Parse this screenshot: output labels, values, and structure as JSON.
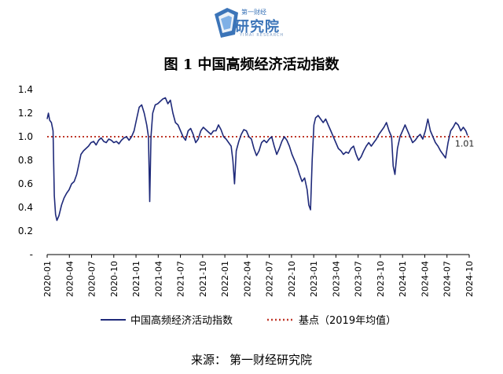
{
  "logo": {
    "top_text": "第一财经",
    "main_text": "研究院",
    "sub_text": "YIMAI RESEARCH"
  },
  "title": "图 1  中国高频经济活动指数",
  "source": {
    "label": "来源：",
    "value": "第一财经研究院"
  },
  "colors": {
    "series": "#1f2a7a",
    "baseline": "#c0392b",
    "axis": "#000000"
  },
  "chart_data": {
    "type": "line",
    "ylim": [
      0,
      1.4
    ],
    "yticks": [
      "-",
      "0.2",
      "0.4",
      "0.6",
      "0.8",
      "1.0",
      "1.2",
      "1.4"
    ],
    "xticks": [
      "2020-01",
      "2020-04",
      "2020-07",
      "2020-10",
      "2021-01",
      "2021-04",
      "2021-07",
      "2021-10",
      "2022-01",
      "2022-04",
      "2022-07",
      "2022-10",
      "2023-01",
      "2023-04",
      "2023-07",
      "2023-10",
      "2024-01",
      "2024-04",
      "2024-07",
      "2024-10"
    ],
    "baseline": {
      "name": "基点（2019年均值）",
      "value": 1.0
    },
    "end_label": "1.01",
    "series": [
      {
        "name": "中国高频经济活动指数",
        "points": [
          [
            0.0,
            1.15
          ],
          [
            0.15,
            1.2
          ],
          [
            0.3,
            1.14
          ],
          [
            0.5,
            1.12
          ],
          [
            0.7,
            1.05
          ],
          [
            0.85,
            0.5
          ],
          [
            1.0,
            0.34
          ],
          [
            1.15,
            0.29
          ],
          [
            1.4,
            0.33
          ],
          [
            1.7,
            0.42
          ],
          [
            2.0,
            0.48
          ],
          [
            2.3,
            0.52
          ],
          [
            2.6,
            0.55
          ],
          [
            2.9,
            0.6
          ],
          [
            3.2,
            0.62
          ],
          [
            3.5,
            0.68
          ],
          [
            3.8,
            0.78
          ],
          [
            4.0,
            0.85
          ],
          [
            4.3,
            0.88
          ],
          [
            4.6,
            0.9
          ],
          [
            4.9,
            0.92
          ],
          [
            5.2,
            0.95
          ],
          [
            5.5,
            0.96
          ],
          [
            5.8,
            0.93
          ],
          [
            6.1,
            0.97
          ],
          [
            6.4,
            0.99
          ],
          [
            6.7,
            0.96
          ],
          [
            7.0,
            0.95
          ],
          [
            7.3,
            0.98
          ],
          [
            7.6,
            0.97
          ],
          [
            7.9,
            0.95
          ],
          [
            8.2,
            0.96
          ],
          [
            8.5,
            0.94
          ],
          [
            8.8,
            0.97
          ],
          [
            9.1,
            0.99
          ],
          [
            9.4,
            1.0
          ],
          [
            9.7,
            0.97
          ],
          [
            10.0,
            1.0
          ],
          [
            10.3,
            1.05
          ],
          [
            10.6,
            1.15
          ],
          [
            10.9,
            1.25
          ],
          [
            11.2,
            1.27
          ],
          [
            11.5,
            1.2
          ],
          [
            11.8,
            1.1
          ],
          [
            12.0,
            1.0
          ],
          [
            12.15,
            0.45
          ],
          [
            12.3,
            1.0
          ],
          [
            12.5,
            1.2
          ],
          [
            12.8,
            1.27
          ],
          [
            13.1,
            1.28
          ],
          [
            13.4,
            1.3
          ],
          [
            13.7,
            1.32
          ],
          [
            14.0,
            1.33
          ],
          [
            14.3,
            1.28
          ],
          [
            14.6,
            1.31
          ],
          [
            14.9,
            1.2
          ],
          [
            15.2,
            1.12
          ],
          [
            15.5,
            1.1
          ],
          [
            15.8,
            1.05
          ],
          [
            16.1,
            1.0
          ],
          [
            16.4,
            0.97
          ],
          [
            16.7,
            1.05
          ],
          [
            17.0,
            1.07
          ],
          [
            17.3,
            1.02
          ],
          [
            17.6,
            0.95
          ],
          [
            17.9,
            0.98
          ],
          [
            18.2,
            1.05
          ],
          [
            18.5,
            1.08
          ],
          [
            18.8,
            1.06
          ],
          [
            19.1,
            1.04
          ],
          [
            19.4,
            1.02
          ],
          [
            19.7,
            1.05
          ],
          [
            20.0,
            1.05
          ],
          [
            20.3,
            1.1
          ],
          [
            20.6,
            1.06
          ],
          [
            20.9,
            1.0
          ],
          [
            21.2,
            0.98
          ],
          [
            21.5,
            0.95
          ],
          [
            21.8,
            0.92
          ],
          [
            22.0,
            0.8
          ],
          [
            22.2,
            0.6
          ],
          [
            22.4,
            0.88
          ],
          [
            22.7,
            0.96
          ],
          [
            23.0,
            1.02
          ],
          [
            23.3,
            1.06
          ],
          [
            23.6,
            1.05
          ],
          [
            23.9,
            1.0
          ],
          [
            24.2,
            0.98
          ],
          [
            24.5,
            0.9
          ],
          [
            24.8,
            0.84
          ],
          [
            25.1,
            0.88
          ],
          [
            25.4,
            0.95
          ],
          [
            25.7,
            0.97
          ],
          [
            26.0,
            0.95
          ],
          [
            26.3,
            0.98
          ],
          [
            26.6,
            1.0
          ],
          [
            26.9,
            0.92
          ],
          [
            27.2,
            0.85
          ],
          [
            27.5,
            0.9
          ],
          [
            27.8,
            0.96
          ],
          [
            28.1,
            1.0
          ],
          [
            28.4,
            0.97
          ],
          [
            28.7,
            0.92
          ],
          [
            29.0,
            0.85
          ],
          [
            29.3,
            0.8
          ],
          [
            29.6,
            0.75
          ],
          [
            29.9,
            0.68
          ],
          [
            30.2,
            0.62
          ],
          [
            30.5,
            0.65
          ],
          [
            30.8,
            0.55
          ],
          [
            31.0,
            0.42
          ],
          [
            31.2,
            0.38
          ],
          [
            31.4,
            0.8
          ],
          [
            31.6,
            1.1
          ],
          [
            31.8,
            1.16
          ],
          [
            32.1,
            1.18
          ],
          [
            32.4,
            1.15
          ],
          [
            32.7,
            1.12
          ],
          [
            33.0,
            1.15
          ],
          [
            33.3,
            1.1
          ],
          [
            33.6,
            1.05
          ],
          [
            33.9,
            1.0
          ],
          [
            34.2,
            0.95
          ],
          [
            34.5,
            0.9
          ],
          [
            34.8,
            0.88
          ],
          [
            35.1,
            0.85
          ],
          [
            35.4,
            0.87
          ],
          [
            35.7,
            0.86
          ],
          [
            36.0,
            0.9
          ],
          [
            36.3,
            0.92
          ],
          [
            36.6,
            0.85
          ],
          [
            36.9,
            0.8
          ],
          [
            37.2,
            0.83
          ],
          [
            37.5,
            0.88
          ],
          [
            37.8,
            0.92
          ],
          [
            38.1,
            0.95
          ],
          [
            38.4,
            0.92
          ],
          [
            38.7,
            0.95
          ],
          [
            39.0,
            0.98
          ],
          [
            39.3,
            1.02
          ],
          [
            39.6,
            1.05
          ],
          [
            39.9,
            1.08
          ],
          [
            40.2,
            1.12
          ],
          [
            40.5,
            1.05
          ],
          [
            40.8,
            1.0
          ],
          [
            41.0,
            0.75
          ],
          [
            41.2,
            0.68
          ],
          [
            41.5,
            0.9
          ],
          [
            41.8,
            1.0
          ],
          [
            42.1,
            1.05
          ],
          [
            42.4,
            1.1
          ],
          [
            42.7,
            1.05
          ],
          [
            43.0,
            1.0
          ],
          [
            43.3,
            0.95
          ],
          [
            43.6,
            0.97
          ],
          [
            43.9,
            1.0
          ],
          [
            44.2,
            1.02
          ],
          [
            44.5,
            0.98
          ],
          [
            44.8,
            1.05
          ],
          [
            45.1,
            1.15
          ],
          [
            45.4,
            1.05
          ],
          [
            45.7,
            1.0
          ],
          [
            46.0,
            0.95
          ],
          [
            46.3,
            0.92
          ],
          [
            46.6,
            0.88
          ],
          [
            46.9,
            0.85
          ],
          [
            47.2,
            0.82
          ],
          [
            47.5,
            0.95
          ],
          [
            47.8,
            1.05
          ],
          [
            48.1,
            1.08
          ],
          [
            48.4,
            1.12
          ],
          [
            48.7,
            1.1
          ],
          [
            49.0,
            1.05
          ],
          [
            49.3,
            1.08
          ],
          [
            49.6,
            1.05
          ],
          [
            49.8,
            1.01
          ]
        ]
      }
    ]
  },
  "legend": {
    "series_label": "中国高频经济活动指数",
    "baseline_label": "基点（2019年均值）"
  }
}
